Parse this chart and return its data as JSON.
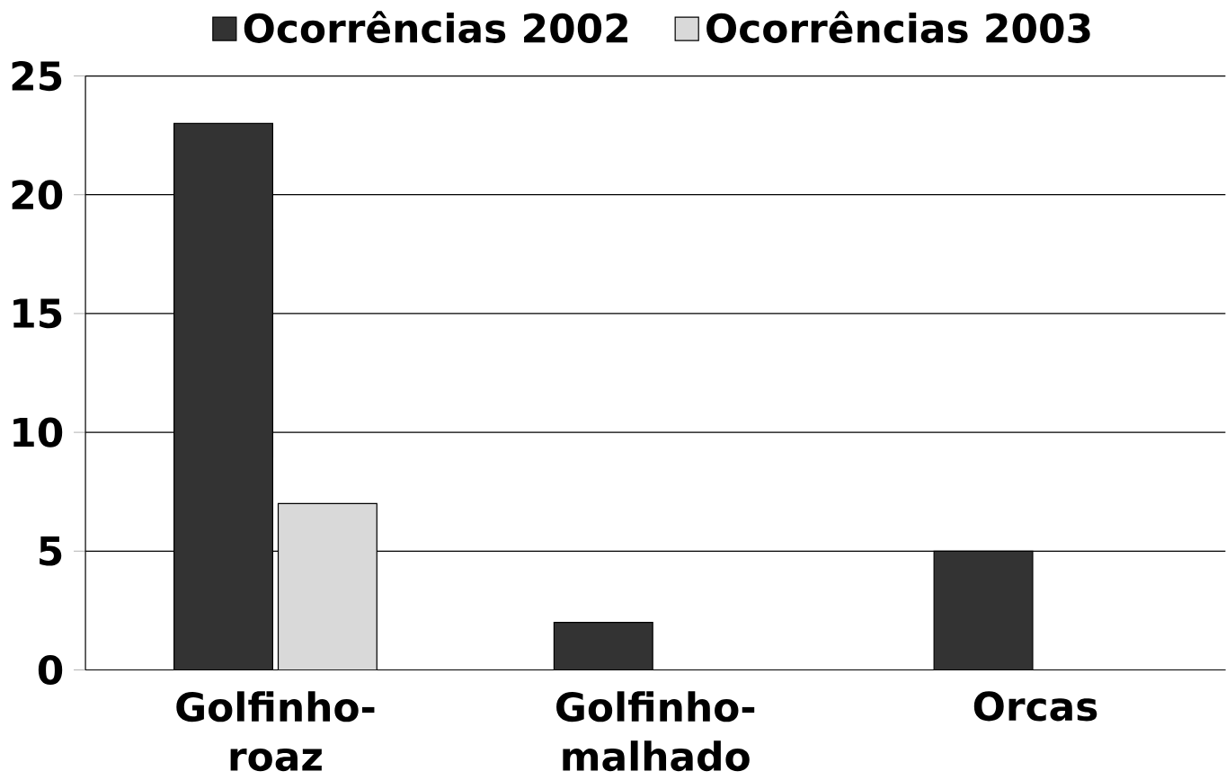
{
  "chart_data": {
    "type": "bar",
    "categories": [
      "Golfinho-roaz",
      "Golfinho-malhado",
      "Orcas"
    ],
    "series": [
      {
        "name": "Ocorrências 2002",
        "color": "#333333",
        "values": [
          23,
          2,
          5
        ]
      },
      {
        "name": "Ocorrências 2003",
        "color": "#d9d9d9",
        "values": [
          7,
          0,
          0
        ]
      }
    ],
    "ylim": [
      0,
      25
    ],
    "yticks": [
      0,
      5,
      10,
      15,
      20,
      25
    ],
    "grid": "y",
    "legend": "top"
  }
}
